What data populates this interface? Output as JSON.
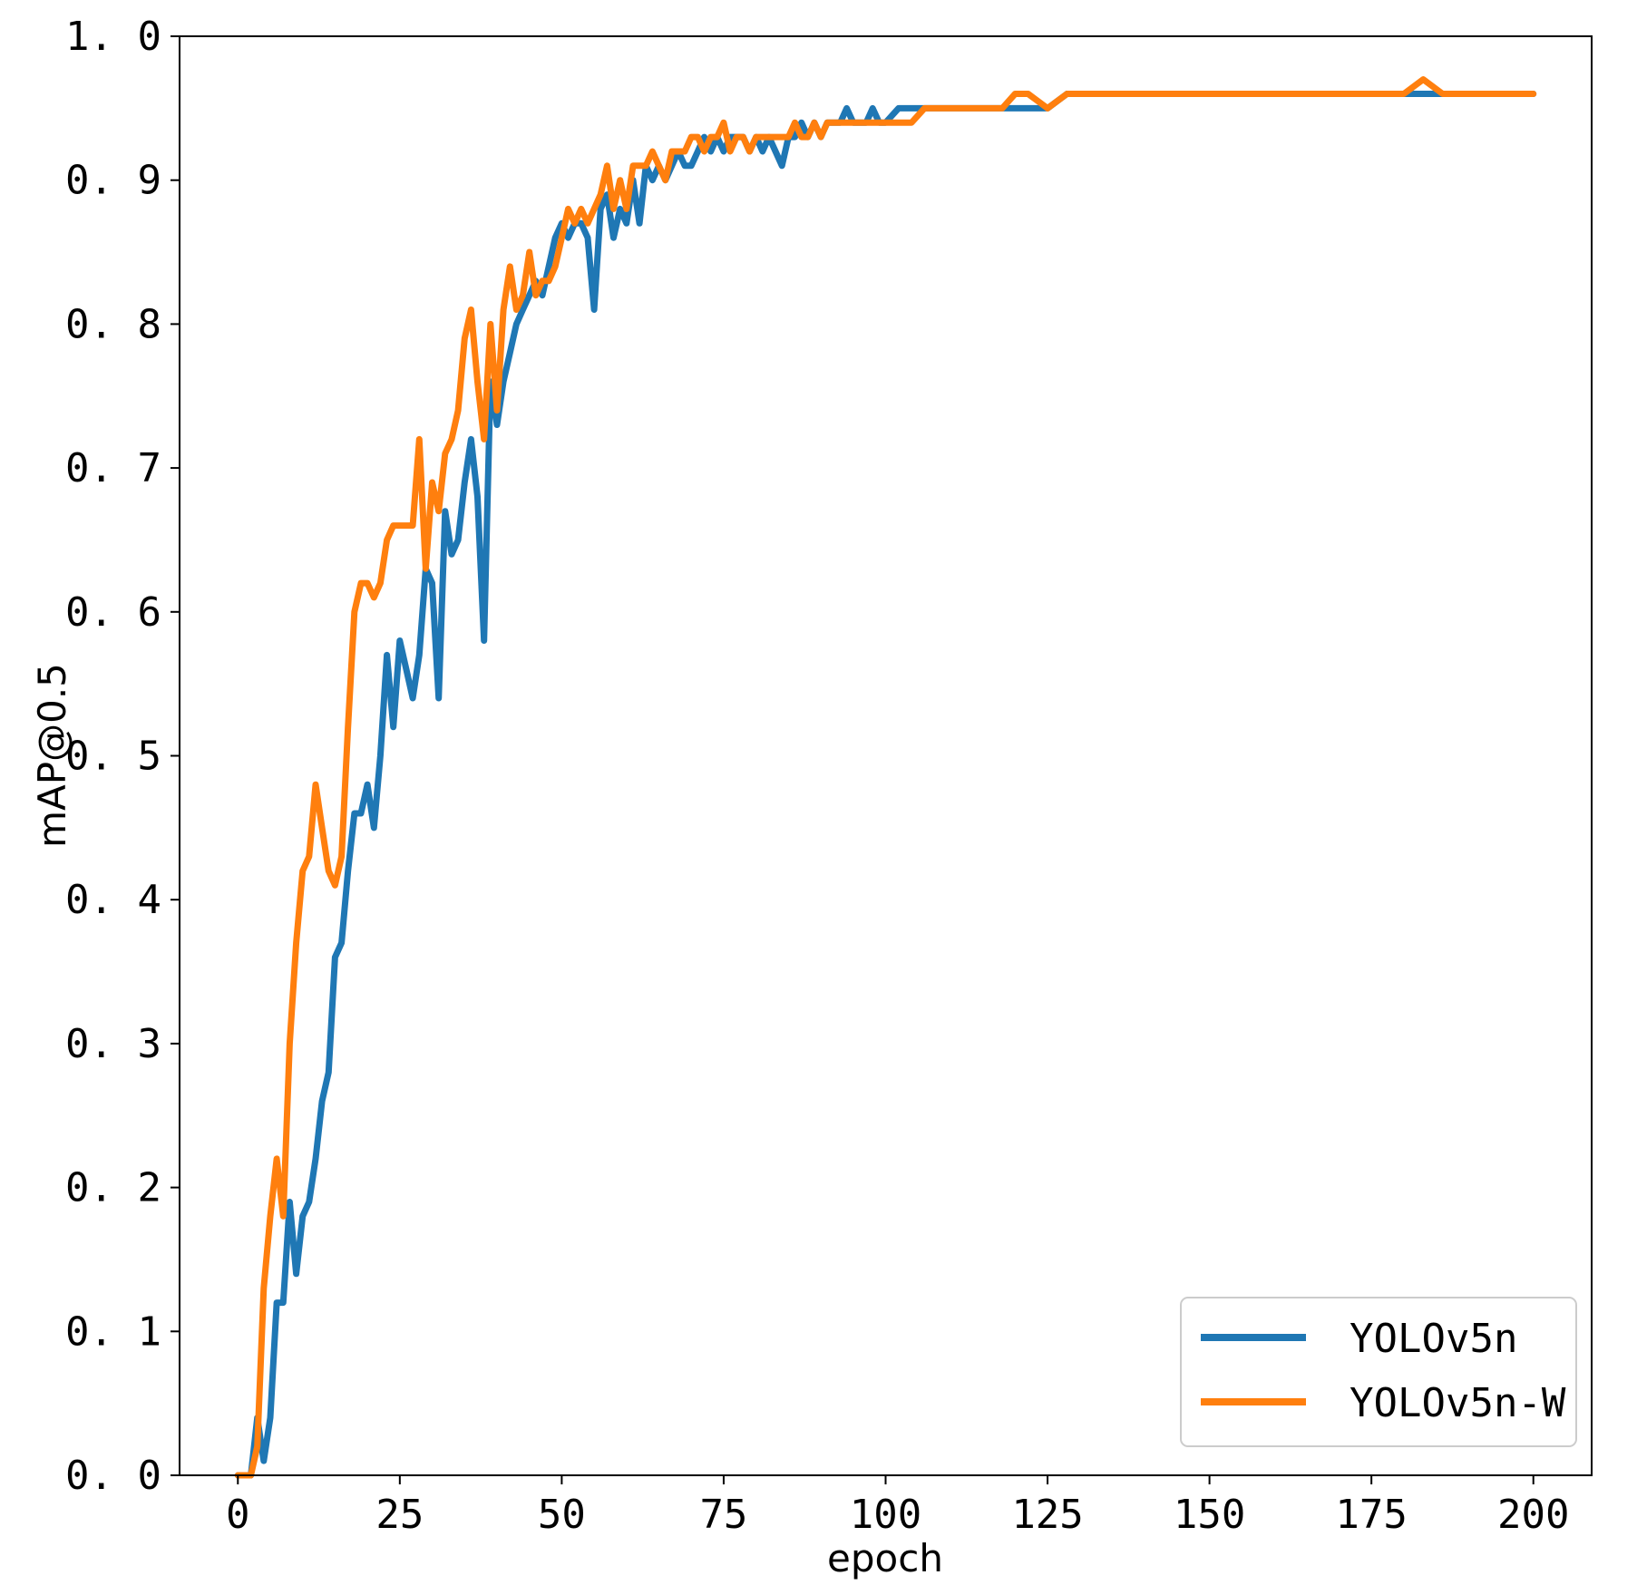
{
  "chart_data": {
    "type": "line",
    "title": "",
    "xlabel": "epoch",
    "ylabel": "mAP@0.5",
    "xlim": [
      -9,
      209
    ],
    "ylim": [
      0.0,
      1.0
    ],
    "xticks": [
      0,
      25,
      50,
      75,
      100,
      125,
      150,
      175,
      200
    ],
    "xtick_labels": [
      "0",
      "25",
      "50",
      "75",
      "100",
      "125",
      "150",
      "175",
      "200"
    ],
    "yticks": [
      0.0,
      0.1,
      0.2,
      0.3,
      0.4,
      0.5,
      0.6,
      0.7,
      0.8,
      0.9,
      1.0
    ],
    "ytick_labels": [
      "0. 0",
      "0. 1",
      "0. 2",
      "0. 3",
      "0. 4",
      "0. 5",
      "0. 6",
      "0. 7",
      "0. 8",
      "0. 9",
      "1. 0"
    ],
    "grid": false,
    "legend_position": "lower-right",
    "series": [
      {
        "name": "YOLOv5n",
        "color": "#1f77b4",
        "points": [
          [
            0,
            0.0
          ],
          [
            1,
            0.0
          ],
          [
            2,
            0.0
          ],
          [
            3,
            0.04
          ],
          [
            4,
            0.01
          ],
          [
            5,
            0.04
          ],
          [
            6,
            0.12
          ],
          [
            7,
            0.12
          ],
          [
            8,
            0.19
          ],
          [
            9,
            0.14
          ],
          [
            10,
            0.18
          ],
          [
            11,
            0.19
          ],
          [
            12,
            0.22
          ],
          [
            13,
            0.26
          ],
          [
            14,
            0.28
          ],
          [
            15,
            0.36
          ],
          [
            16,
            0.37
          ],
          [
            17,
            0.42
          ],
          [
            18,
            0.46
          ],
          [
            19,
            0.46
          ],
          [
            20,
            0.48
          ],
          [
            21,
            0.45
          ],
          [
            22,
            0.5
          ],
          [
            23,
            0.57
          ],
          [
            24,
            0.52
          ],
          [
            25,
            0.58
          ],
          [
            26,
            0.56
          ],
          [
            27,
            0.54
          ],
          [
            28,
            0.57
          ],
          [
            29,
            0.63
          ],
          [
            30,
            0.62
          ],
          [
            31,
            0.54
          ],
          [
            32,
            0.67
          ],
          [
            33,
            0.64
          ],
          [
            34,
            0.65
          ],
          [
            35,
            0.69
          ],
          [
            36,
            0.72
          ],
          [
            37,
            0.68
          ],
          [
            38,
            0.58
          ],
          [
            39,
            0.76
          ],
          [
            40,
            0.73
          ],
          [
            41,
            0.76
          ],
          [
            42,
            0.78
          ],
          [
            43,
            0.8
          ],
          [
            44,
            0.81
          ],
          [
            45,
            0.82
          ],
          [
            46,
            0.83
          ],
          [
            47,
            0.82
          ],
          [
            48,
            0.84
          ],
          [
            49,
            0.86
          ],
          [
            50,
            0.87
          ],
          [
            51,
            0.86
          ],
          [
            52,
            0.87
          ],
          [
            53,
            0.87
          ],
          [
            54,
            0.86
          ],
          [
            55,
            0.81
          ],
          [
            56,
            0.88
          ],
          [
            57,
            0.89
          ],
          [
            58,
            0.86
          ],
          [
            59,
            0.88
          ],
          [
            60,
            0.87
          ],
          [
            61,
            0.9
          ],
          [
            62,
            0.87
          ],
          [
            63,
            0.91
          ],
          [
            64,
            0.9
          ],
          [
            65,
            0.91
          ],
          [
            66,
            0.9
          ],
          [
            67,
            0.91
          ],
          [
            68,
            0.92
          ],
          [
            69,
            0.91
          ],
          [
            70,
            0.91
          ],
          [
            71,
            0.92
          ],
          [
            72,
            0.93
          ],
          [
            73,
            0.92
          ],
          [
            74,
            0.93
          ],
          [
            75,
            0.92
          ],
          [
            76,
            0.93
          ],
          [
            77,
            0.93
          ],
          [
            78,
            0.93
          ],
          [
            79,
            0.92
          ],
          [
            80,
            0.93
          ],
          [
            81,
            0.92
          ],
          [
            82,
            0.93
          ],
          [
            83,
            0.92
          ],
          [
            84,
            0.91
          ],
          [
            85,
            0.93
          ],
          [
            86,
            0.93
          ],
          [
            87,
            0.94
          ],
          [
            88,
            0.93
          ],
          [
            89,
            0.94
          ],
          [
            90,
            0.93
          ],
          [
            91,
            0.94
          ],
          [
            92,
            0.94
          ],
          [
            93,
            0.94
          ],
          [
            94,
            0.95
          ],
          [
            95,
            0.94
          ],
          [
            96,
            0.94
          ],
          [
            97,
            0.94
          ],
          [
            98,
            0.95
          ],
          [
            99,
            0.94
          ],
          [
            100,
            0.94
          ],
          [
            102,
            0.95
          ],
          [
            104,
            0.95
          ],
          [
            106,
            0.95
          ],
          [
            108,
            0.95
          ],
          [
            110,
            0.95
          ],
          [
            112,
            0.95
          ],
          [
            115,
            0.95
          ],
          [
            118,
            0.95
          ],
          [
            120,
            0.95
          ],
          [
            122,
            0.95
          ],
          [
            125,
            0.95
          ],
          [
            128,
            0.96
          ],
          [
            130,
            0.96
          ],
          [
            133,
            0.96
          ],
          [
            136,
            0.96
          ],
          [
            140,
            0.96
          ],
          [
            143,
            0.96
          ],
          [
            146,
            0.96
          ],
          [
            150,
            0.96
          ],
          [
            153,
            0.96
          ],
          [
            156,
            0.96
          ],
          [
            160,
            0.96
          ],
          [
            163,
            0.96
          ],
          [
            166,
            0.96
          ],
          [
            170,
            0.96
          ],
          [
            173,
            0.96
          ],
          [
            176,
            0.96
          ],
          [
            180,
            0.96
          ],
          [
            183,
            0.96
          ],
          [
            186,
            0.96
          ],
          [
            190,
            0.96
          ],
          [
            193,
            0.96
          ],
          [
            196,
            0.96
          ],
          [
            200,
            0.96
          ]
        ]
      },
      {
        "name": "YOLOv5n-W",
        "color": "#ff7f0e",
        "points": [
          [
            0,
            0.0
          ],
          [
            1,
            0.0
          ],
          [
            2,
            0.0
          ],
          [
            3,
            0.02
          ],
          [
            4,
            0.13
          ],
          [
            5,
            0.18
          ],
          [
            6,
            0.22
          ],
          [
            7,
            0.18
          ],
          [
            8,
            0.3
          ],
          [
            9,
            0.37
          ],
          [
            10,
            0.42
          ],
          [
            11,
            0.43
          ],
          [
            12,
            0.48
          ],
          [
            13,
            0.45
          ],
          [
            14,
            0.42
          ],
          [
            15,
            0.41
          ],
          [
            16,
            0.43
          ],
          [
            17,
            0.52
          ],
          [
            18,
            0.6
          ],
          [
            19,
            0.62
          ],
          [
            20,
            0.62
          ],
          [
            21,
            0.61
          ],
          [
            22,
            0.62
          ],
          [
            23,
            0.65
          ],
          [
            24,
            0.66
          ],
          [
            25,
            0.66
          ],
          [
            26,
            0.66
          ],
          [
            27,
            0.66
          ],
          [
            28,
            0.72
          ],
          [
            29,
            0.63
          ],
          [
            30,
            0.69
          ],
          [
            31,
            0.67
          ],
          [
            32,
            0.71
          ],
          [
            33,
            0.72
          ],
          [
            34,
            0.74
          ],
          [
            35,
            0.79
          ],
          [
            36,
            0.81
          ],
          [
            37,
            0.76
          ],
          [
            38,
            0.72
          ],
          [
            39,
            0.8
          ],
          [
            40,
            0.74
          ],
          [
            41,
            0.81
          ],
          [
            42,
            0.84
          ],
          [
            43,
            0.81
          ],
          [
            44,
            0.82
          ],
          [
            45,
            0.85
          ],
          [
            46,
            0.82
          ],
          [
            47,
            0.83
          ],
          [
            48,
            0.83
          ],
          [
            49,
            0.84
          ],
          [
            50,
            0.86
          ],
          [
            51,
            0.88
          ],
          [
            52,
            0.87
          ],
          [
            53,
            0.88
          ],
          [
            54,
            0.87
          ],
          [
            55,
            0.88
          ],
          [
            56,
            0.89
          ],
          [
            57,
            0.91
          ],
          [
            58,
            0.88
          ],
          [
            59,
            0.9
          ],
          [
            60,
            0.88
          ],
          [
            61,
            0.91
          ],
          [
            62,
            0.91
          ],
          [
            63,
            0.91
          ],
          [
            64,
            0.92
          ],
          [
            65,
            0.91
          ],
          [
            66,
            0.9
          ],
          [
            67,
            0.92
          ],
          [
            68,
            0.92
          ],
          [
            69,
            0.92
          ],
          [
            70,
            0.93
          ],
          [
            71,
            0.93
          ],
          [
            72,
            0.92
          ],
          [
            73,
            0.93
          ],
          [
            74,
            0.93
          ],
          [
            75,
            0.94
          ],
          [
            76,
            0.92
          ],
          [
            77,
            0.93
          ],
          [
            78,
            0.93
          ],
          [
            79,
            0.92
          ],
          [
            80,
            0.93
          ],
          [
            81,
            0.93
          ],
          [
            82,
            0.93
          ],
          [
            83,
            0.93
          ],
          [
            84,
            0.93
          ],
          [
            85,
            0.93
          ],
          [
            86,
            0.94
          ],
          [
            87,
            0.93
          ],
          [
            88,
            0.93
          ],
          [
            89,
            0.94
          ],
          [
            90,
            0.93
          ],
          [
            91,
            0.94
          ],
          [
            92,
            0.94
          ],
          [
            93,
            0.94
          ],
          [
            94,
            0.94
          ],
          [
            95,
            0.94
          ],
          [
            96,
            0.94
          ],
          [
            97,
            0.94
          ],
          [
            98,
            0.94
          ],
          [
            99,
            0.94
          ],
          [
            100,
            0.94
          ],
          [
            102,
            0.94
          ],
          [
            104,
            0.94
          ],
          [
            106,
            0.95
          ],
          [
            108,
            0.95
          ],
          [
            110,
            0.95
          ],
          [
            112,
            0.95
          ],
          [
            115,
            0.95
          ],
          [
            118,
            0.95
          ],
          [
            120,
            0.96
          ],
          [
            122,
            0.96
          ],
          [
            125,
            0.95
          ],
          [
            128,
            0.96
          ],
          [
            130,
            0.96
          ],
          [
            133,
            0.96
          ],
          [
            136,
            0.96
          ],
          [
            140,
            0.96
          ],
          [
            143,
            0.96
          ],
          [
            146,
            0.96
          ],
          [
            150,
            0.96
          ],
          [
            153,
            0.96
          ],
          [
            156,
            0.96
          ],
          [
            160,
            0.96
          ],
          [
            163,
            0.96
          ],
          [
            166,
            0.96
          ],
          [
            170,
            0.96
          ],
          [
            173,
            0.96
          ],
          [
            176,
            0.96
          ],
          [
            180,
            0.96
          ],
          [
            183,
            0.97
          ],
          [
            186,
            0.96
          ],
          [
            190,
            0.96
          ],
          [
            193,
            0.96
          ],
          [
            196,
            0.96
          ],
          [
            200,
            0.96
          ]
        ]
      }
    ]
  }
}
